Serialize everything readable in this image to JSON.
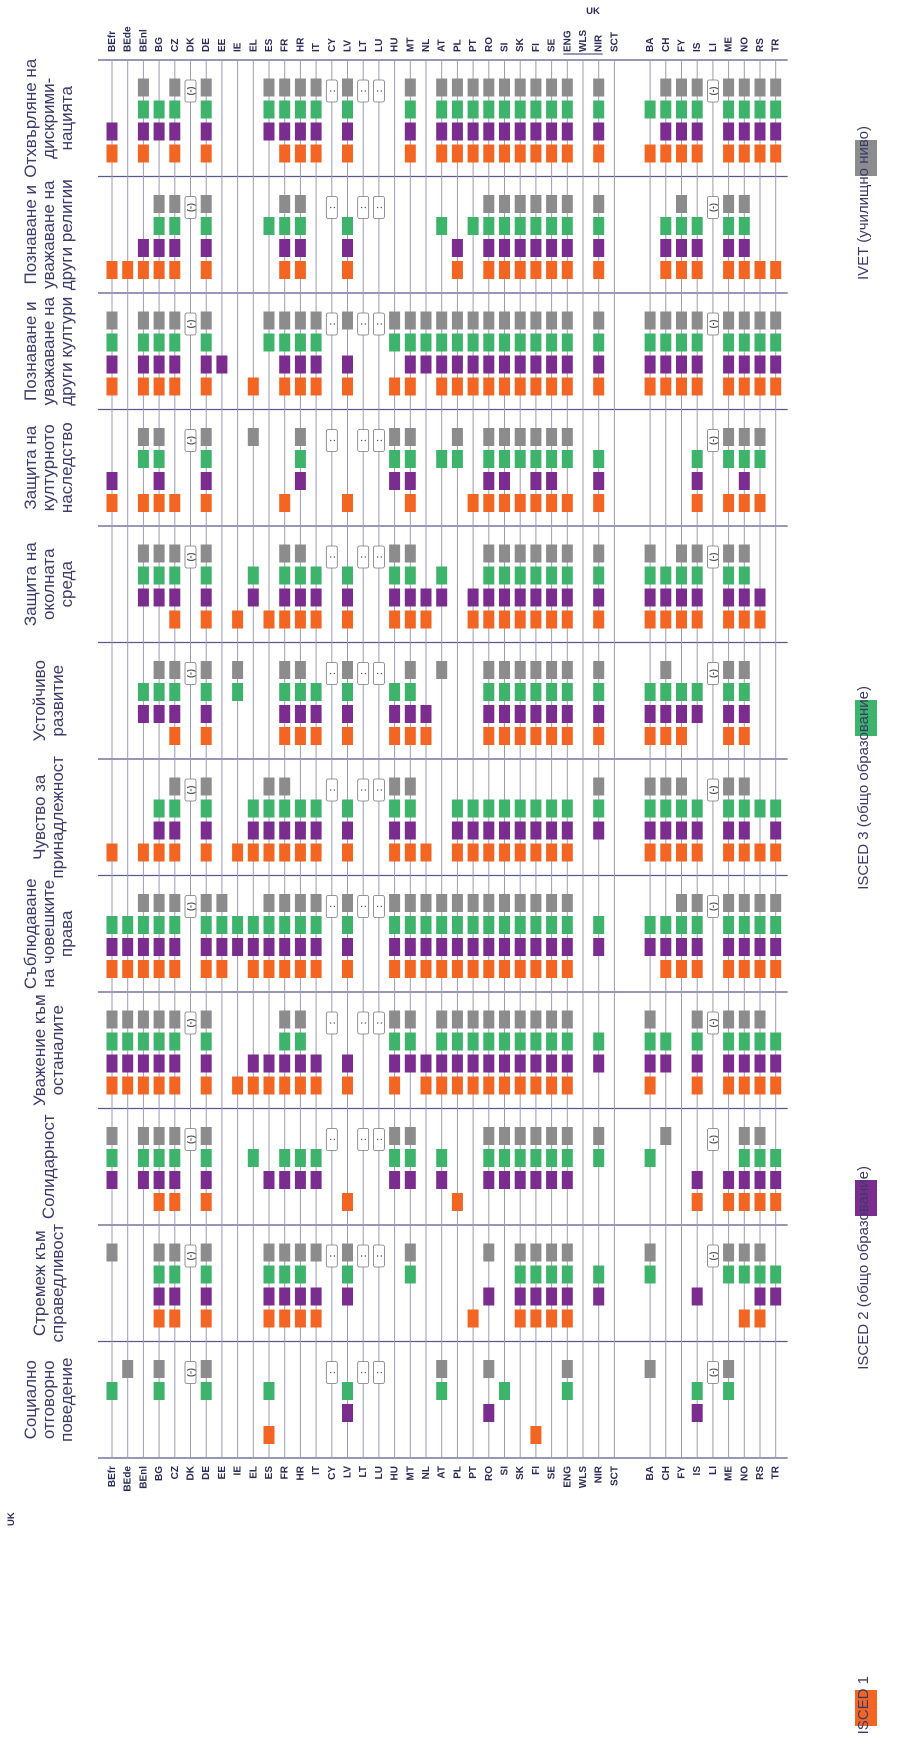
{
  "chart_data": {
    "type": "table",
    "orientation": "rotated-90",
    "title": "",
    "countries_top": [
      "BEfr",
      "BEde",
      "BEnl",
      "BG",
      "CZ",
      "DK",
      "DE",
      "EE",
      "IE",
      "EL",
      "ES",
      "FR",
      "HR",
      "IT",
      "CY",
      "LV",
      "LT",
      "LU",
      "HU",
      "MT",
      "NL",
      "AT",
      "PL",
      "PT",
      "RO",
      "SI",
      "SK",
      "FI",
      "SE",
      "ENG",
      "WLS",
      "NIR",
      "SCT",
      "BA",
      "CH",
      "FY",
      "IS",
      "LI",
      "ME",
      "NO",
      "RS",
      "TR"
    ],
    "countries_bottom": [
      "BEfr",
      "BEde",
      "BEnl",
      "BG",
      "CZ",
      "DK",
      "DE",
      "EE",
      "IE",
      "EL",
      "ES",
      "FR",
      "HR",
      "IT",
      "CY",
      "LV",
      "LT",
      "LU",
      "HU",
      "MT",
      "NL",
      "AT",
      "PL",
      "PT",
      "RO",
      "SI",
      "SK",
      "FI",
      "SE",
      "ENG",
      "WLS",
      "NIR",
      "SCT",
      "BA",
      "CH",
      "FY",
      "IS",
      "LI",
      "ME",
      "NO",
      "RS",
      "TR"
    ],
    "uk_label": "UK",
    "categories": [
      {
        "name": "Социално отговорно поведение",
        "lines": [
          "Социално",
          "отговорно",
          "поведение"
        ]
      },
      {
        "name": "Стремеж към справедливост",
        "lines": [
          "Стремеж към",
          "справедливост"
        ]
      },
      {
        "name": "Солидарност",
        "lines": [
          "Солидарност"
        ]
      },
      {
        "name": "Уважение към останалите",
        "lines": [
          "Уважение към",
          "останалите"
        ]
      },
      {
        "name": "Съблюдаване на човешките права",
        "lines": [
          "Съблюдаване",
          "на човешките",
          "права"
        ]
      },
      {
        "name": "Чувство за принадлежност",
        "lines": [
          "Чувство за",
          "принадлежност"
        ]
      },
      {
        "name": "Устойчиво развитие",
        "lines": [
          "Устойчиво",
          "развитие"
        ]
      },
      {
        "name": "Защита на околната среда",
        "lines": [
          "Защита на",
          "околната",
          "среда"
        ]
      },
      {
        "name": "Защита на културното наследство",
        "lines": [
          "Защита на",
          "културното",
          "наследство"
        ]
      },
      {
        "name": "Познаване и уважаване на други култури",
        "lines": [
          "Познаване и",
          "уважаване на",
          "други култури"
        ]
      },
      {
        "name": "Познаване и уважаване на други религии",
        "lines": [
          "Познаване и",
          "уважаване на",
          "други религии"
        ]
      },
      {
        "name": "Отхвърляне на дискриминацията",
        "lines": [
          "Отхвърляне на",
          "дискрими-",
          "нацията"
        ]
      }
    ],
    "levels": [
      {
        "key": "i1",
        "label": "ISCED 1",
        "color": "#f26522"
      },
      {
        "key": "i2",
        "label": "ISCED 2 (общо образование)",
        "color": "#7b2c8f"
      },
      {
        "key": "i3",
        "label": "ISCED 3 (общо образование)",
        "color": "#3db36b"
      },
      {
        "key": "iv",
        "label": "IVET (училищно ниво)",
        "color": "#8c8c8c"
      }
    ],
    "special_marks": {
      "paren": "(-)",
      "colon": ":"
    },
    "cells": [
      [
        "0010,0001,0000,0011,0000,B,0011,0000,0000,0000,1010,0000,0000,0000,C,0110,C,C,0000,0000,0000,0011,0000,0000,0101,0010,0000,1000,0000,0011,0000,0000,0000,0001,0000,0000,0110,B,0011,0000,0000,0000"
      ],
      [
        "0001,0000,0000,1111,1111,B,1111,0000,0000,0000,1111,1111,1111,1101,C,0111,C,C,0000,0011,0000,0000,0000,1000,0101,0000,1111,1111,1111,1111,0000,0110,0000,0011,0000,0000,0100,B,0011,1011,1111,0110"
      ],
      [
        "0111,0000,0111,1111,1111,B,1111,0000,0000,0010,0100,0110,0110,0110,C,1000,C,C,0111,0111,0000,0110,1000,0000,0111,0111,0111,0111,0111,0111,0000,0011,0000,0010,0001,0000,1100,B,1100,1111,1111,1110"
      ],
      [
        "1111,1111,1111,1111,1111,B,1111,0000,1000,1100,1100,1111,1111,1100,C,1100,C,C,1111,0111,1100,1111,1111,1111,1111,1111,1111,1111,1111,1111,0000,0110,0000,1111,0110,0000,1111,B,1111,1111,1111,1110"
      ],
      [
        "1110,1110,1111,1111,1111,B,1111,1111,0110,1110,1111,1111,1111,1111,C,1111,C,C,1111,1111,1111,1111,1111,1111,1111,1111,1111,1111,1111,1111,0000,0110,0000,0110,1110,1111,1111,B,1111,1111,1111,1111"
      ],
      [
        "1000,0000,1000,1110,1111,B,1111,0000,1000,1110,1111,1111,1110,1110,C,1110,C,C,1111,1111,1000,0000,1110,1110,1110,1110,1110,1110,1110,1110,0000,0111,0000,1111,1111,1111,1110,B,1111,1111,1010,1110"
      ],
      [
        "0000,0000,0110,0111,1111,B,1111,0000,0011,0000,0000,1111,1111,1110,C,1111,C,C,1110,1111,1100,0001,0000,0000,1111,1111,1111,1111,1111,1111,0000,1111,0000,1110,1111,1110,0110,B,1111,1111,0000,0000"
      ],
      [
        "0000,0000,0111,0111,1111,B,1111,0000,1000,0110,1000,1111,1111,1110,C,1110,C,C,1111,1111,1100,0110,0000,1100,1111,1111,1111,1111,1111,1111,0000,1111,0000,1111,1110,1111,1111,B,1111,1111,1100,0000"
      ],
      [
        "1100,0000,1011,1111,1000,B,1111,0000,0000,0001,0000,1000,0111,0000,C,1000,C,C,0111,1111,0000,0010,0011,1000,1111,1111,1011,1111,1111,1011,0000,1110,0000,0000,0000,0000,1110,B,1011,1111,1011,0000"
      ],
      [
        "1111,0000,1111,1111,1111,B,1111,0100,0000,1000,0011,1111,1111,1111,C,1101,C,C,1011,1111,0111,1111,1111,1111,1111,1111,1111,1111,1111,1111,0000,1111,0000,1111,1111,1111,1111,B,1111,1111,1111,1111"
      ],
      [
        "1000,1000,1100,1111,1111,B,1111,0000,0000,0000,0010,1111,1111,0000,C,1110,C,C,0000,0000,0000,0010,1100,0010,1111,1111,1111,1111,1111,1111,0000,1111,0000,0000,1110,1111,1110,B,1111,1111,1000,1000"
      ],
      [
        "1100,0000,1111,0110,1111,B,1111,0000,0000,0000,0111,1111,1111,1111,C,1111,C,C,0000,1111,0000,1111,1111,1111,1111,1111,1111,1111,1111,1111,0000,1111,0000,1010,1111,1111,1111,B,1111,1111,1111,1111"
      ]
    ]
  }
}
